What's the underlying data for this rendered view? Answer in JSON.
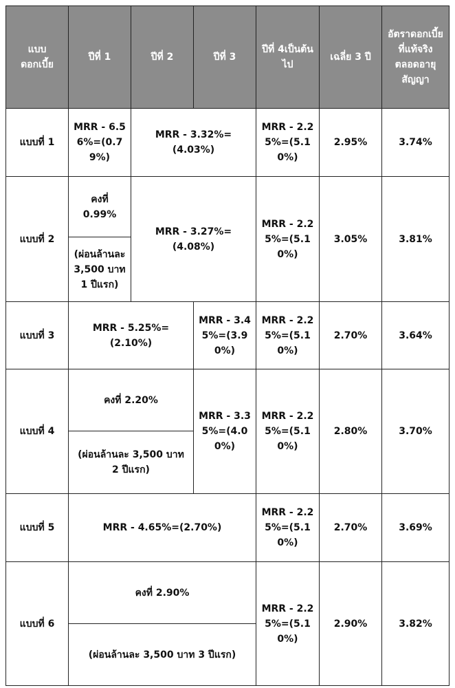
{
  "header": {
    "type": "แบบ\nดอกเบี้ย",
    "y1": "ปีที่ 1",
    "y2": "ปีที่ 2",
    "y3": "ปีที่ 3",
    "y4": "ปีที่ 4เป็นต้นไป",
    "avg": "เฉลี่ย 3 ปี",
    "eff": "อัตราดอกเบี้ยที่แท้จริงตลอดอายุสัญญา"
  },
  "rows": [
    {
      "name": "แบบที่ 1",
      "y1": "MRR - 6.56%=(0.79%)",
      "y23": "MRR - 3.32%=(4.03%)",
      "y4": "MRR - 2.25%=(5.10%)",
      "avg": "2.95%",
      "eff": "3.74%"
    },
    {
      "name": "แบบที่ 2",
      "y1_fixed": "คงที่ 0.99%",
      "y1_note": "(ผ่อนล้านละ 3,500 บาท 1 ปีแรก)",
      "y23": "MRR - 3.27%=(4.08%)",
      "y4": "MRR - 2.25%=(5.10%)",
      "avg": "3.05%",
      "eff": "3.81%"
    },
    {
      "name": "แบบที่ 3",
      "y12": "MRR - 5.25%=(2.10%)",
      "y3": "MRR - 3.45%=(3.90%)",
      "y4": "MRR - 2.25%=(5.10%)",
      "avg": "2.70%",
      "eff": "3.64%"
    },
    {
      "name": "แบบที่ 4",
      "y12_fixed": "คงที่ 2.20%",
      "y12_note": "(ผ่อนล้านละ 3,500 บาท 2 ปีแรก)",
      "y3": "MRR - 3.35%=(4.00%)",
      "y4": "MRR - 2.25%=(5.10%)",
      "avg": "2.80%",
      "eff": "3.70%"
    },
    {
      "name": "แบบที่ 5",
      "y123": "MRR - 4.65%=(2.70%)",
      "y4": "MRR - 2.25%=(5.10%)",
      "avg": "2.70%",
      "eff": "3.69%"
    },
    {
      "name": "แบบที่ 6",
      "y123_fixed": "คงที่ 2.90%",
      "y123_note": "(ผ่อนล้านละ 3,500 บาท 3 ปีแรก)",
      "y4": "MRR - 2.25%=(5.10%)",
      "avg": "2.90%",
      "eff": "3.82%"
    }
  ]
}
